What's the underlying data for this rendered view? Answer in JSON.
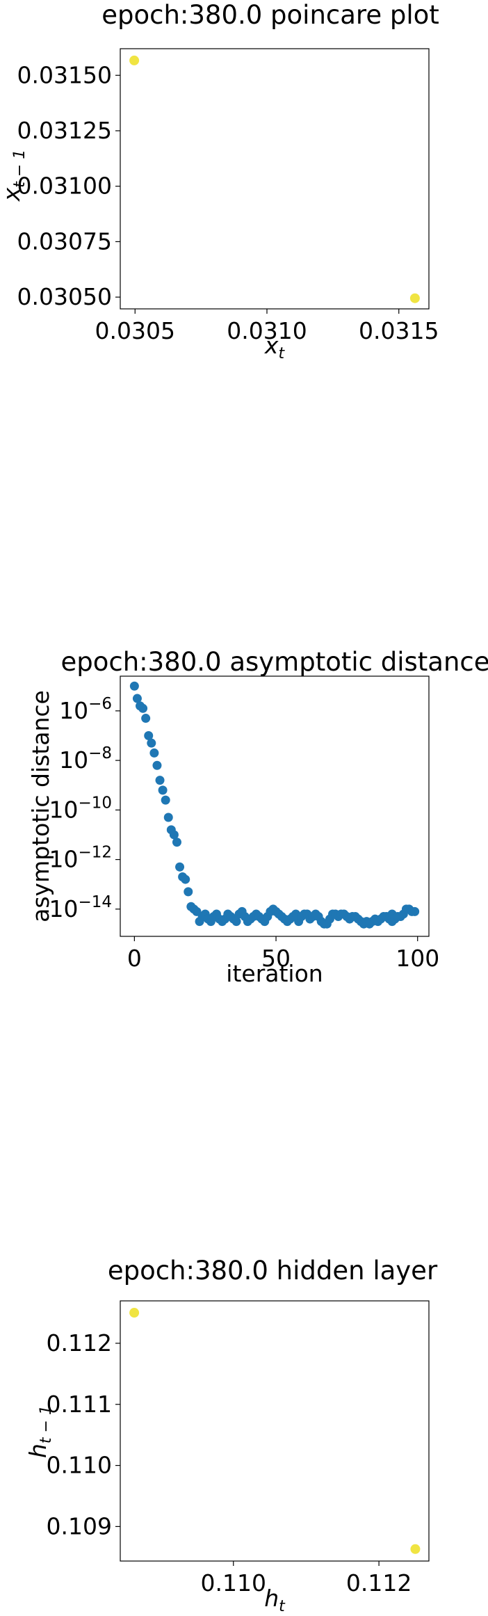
{
  "chart_data": [
    {
      "type": "scatter",
      "title": "epoch:380.0 poincare plot",
      "xlabel": "x",
      "xlabel_sub": "t",
      "ylabel": "x",
      "ylabel_sub": "t − 1",
      "xlim": [
        0.030444,
        0.031614
      ],
      "ylim": [
        0.030447,
        0.03162
      ],
      "xticks": [
        {
          "value": 0.0305,
          "label": "0.0305"
        },
        {
          "value": 0.031,
          "label": "0.0310"
        },
        {
          "value": 0.0315,
          "label": "0.0315"
        }
      ],
      "yticks": [
        {
          "value": 0.0305,
          "label": "0.03050"
        },
        {
          "value": 0.03075,
          "label": "0.03075"
        },
        {
          "value": 0.031,
          "label": "0.03100"
        },
        {
          "value": 0.03125,
          "label": "0.03125"
        },
        {
          "value": 0.0315,
          "label": "0.03150"
        }
      ],
      "points": [
        {
          "x": 0.030497,
          "y": 0.031567
        },
        {
          "x": 0.031561,
          "y": 0.030495
        }
      ],
      "color": "#f0e442"
    },
    {
      "type": "scatter",
      "title": "epoch:380.0 asymptotic distance",
      "xlabel": "iteration",
      "ylabel": "asymptotic distance",
      "yscale": "log",
      "xlim": [
        -5,
        104
      ],
      "ylim_log10": [
        -15.1,
        -4.6
      ],
      "xticks": [
        {
          "value": 0,
          "label": "0"
        },
        {
          "value": 50,
          "label": "50"
        },
        {
          "value": 100,
          "label": "100"
        }
      ],
      "yticks": [
        {
          "exp": -6,
          "label_base": "10",
          "label_exp": "−6"
        },
        {
          "exp": -8,
          "label_base": "10",
          "label_exp": "−8"
        },
        {
          "exp": -10,
          "label_base": "10",
          "label_exp": "−10"
        },
        {
          "exp": -12,
          "label_base": "10",
          "label_exp": "−12"
        },
        {
          "exp": -14,
          "label_base": "10",
          "label_exp": "−14"
        }
      ],
      "x": [
        0,
        1,
        2,
        3,
        4,
        5,
        6,
        7,
        8,
        9,
        10,
        11,
        12,
        13,
        14,
        15,
        16,
        17,
        18,
        19,
        20,
        21,
        22,
        23,
        24,
        25,
        26,
        27,
        28,
        29,
        30,
        31,
        32,
        33,
        34,
        35,
        36,
        37,
        38,
        39,
        40,
        41,
        42,
        43,
        44,
        45,
        46,
        47,
        48,
        49,
        50,
        51,
        52,
        53,
        54,
        55,
        56,
        57,
        58,
        59,
        60,
        61,
        62,
        63,
        64,
        65,
        66,
        67,
        68,
        69,
        70,
        71,
        72,
        73,
        74,
        75,
        76,
        77,
        78,
        79,
        80,
        81,
        82,
        83,
        84,
        85,
        86,
        87,
        88,
        89,
        90,
        91,
        91,
        92,
        93,
        94,
        95,
        96,
        97,
        98,
        99
      ],
      "log10_y": [
        -5.0,
        -5.5,
        -5.8,
        -5.9,
        -6.3,
        -7.0,
        -7.3,
        -7.7,
        -8.2,
        -8.8,
        -9.2,
        -9.6,
        -10.3,
        -10.8,
        -11.0,
        -11.3,
        -12.3,
        -12.7,
        -12.8,
        -13.3,
        -13.9,
        -14.0,
        -14.1,
        -14.5,
        -14.3,
        -14.2,
        -14.4,
        -14.5,
        -14.3,
        -14.2,
        -14.4,
        -14.5,
        -14.4,
        -14.2,
        -14.3,
        -14.4,
        -14.5,
        -14.2,
        -14.1,
        -14.3,
        -14.5,
        -14.4,
        -14.3,
        -14.2,
        -14.3,
        -14.4,
        -14.5,
        -14.3,
        -14.1,
        -14.0,
        -14.1,
        -14.2,
        -14.3,
        -14.4,
        -14.5,
        -14.4,
        -14.3,
        -14.2,
        -14.5,
        -14.3,
        -14.2,
        -14.2,
        -14.4,
        -14.3,
        -14.2,
        -14.3,
        -14.5,
        -14.6,
        -14.6,
        -14.4,
        -14.2,
        -14.2,
        -14.3,
        -14.2,
        -14.2,
        -14.3,
        -14.4,
        -14.3,
        -14.3,
        -14.4,
        -14.5,
        -14.6,
        -14.5,
        -14.6,
        -14.5,
        -14.4,
        -14.5,
        -14.4,
        -14.3,
        -14.3,
        -14.4,
        -14.2,
        -14.5,
        -14.4,
        -14.3,
        -14.3,
        -14.2,
        -14.0,
        -14.0,
        -14.1,
        -14.1
      ],
      "color": "#1f77b4"
    },
    {
      "type": "scatter",
      "title": "epoch:380.0 hidden layer",
      "xlabel": "h",
      "xlabel_sub": "t",
      "ylabel": "h",
      "ylabel_sub": "t − 1",
      "xlim": [
        0.108445,
        0.112687
      ],
      "ylim": [
        0.108435,
        0.112694
      ],
      "xticks": [
        {
          "value": 0.11,
          "label": "0.110"
        },
        {
          "value": 0.112,
          "label": "0.112"
        }
      ],
      "yticks": [
        {
          "value": 0.109,
          "label": "0.109"
        },
        {
          "value": 0.11,
          "label": "0.110"
        },
        {
          "value": 0.111,
          "label": "0.111"
        },
        {
          "value": 0.112,
          "label": "0.112"
        }
      ],
      "points": [
        {
          "x": 0.108637,
          "y": 0.1125
        },
        {
          "x": 0.1125,
          "y": 0.108631
        }
      ],
      "color": "#f0e442"
    }
  ]
}
